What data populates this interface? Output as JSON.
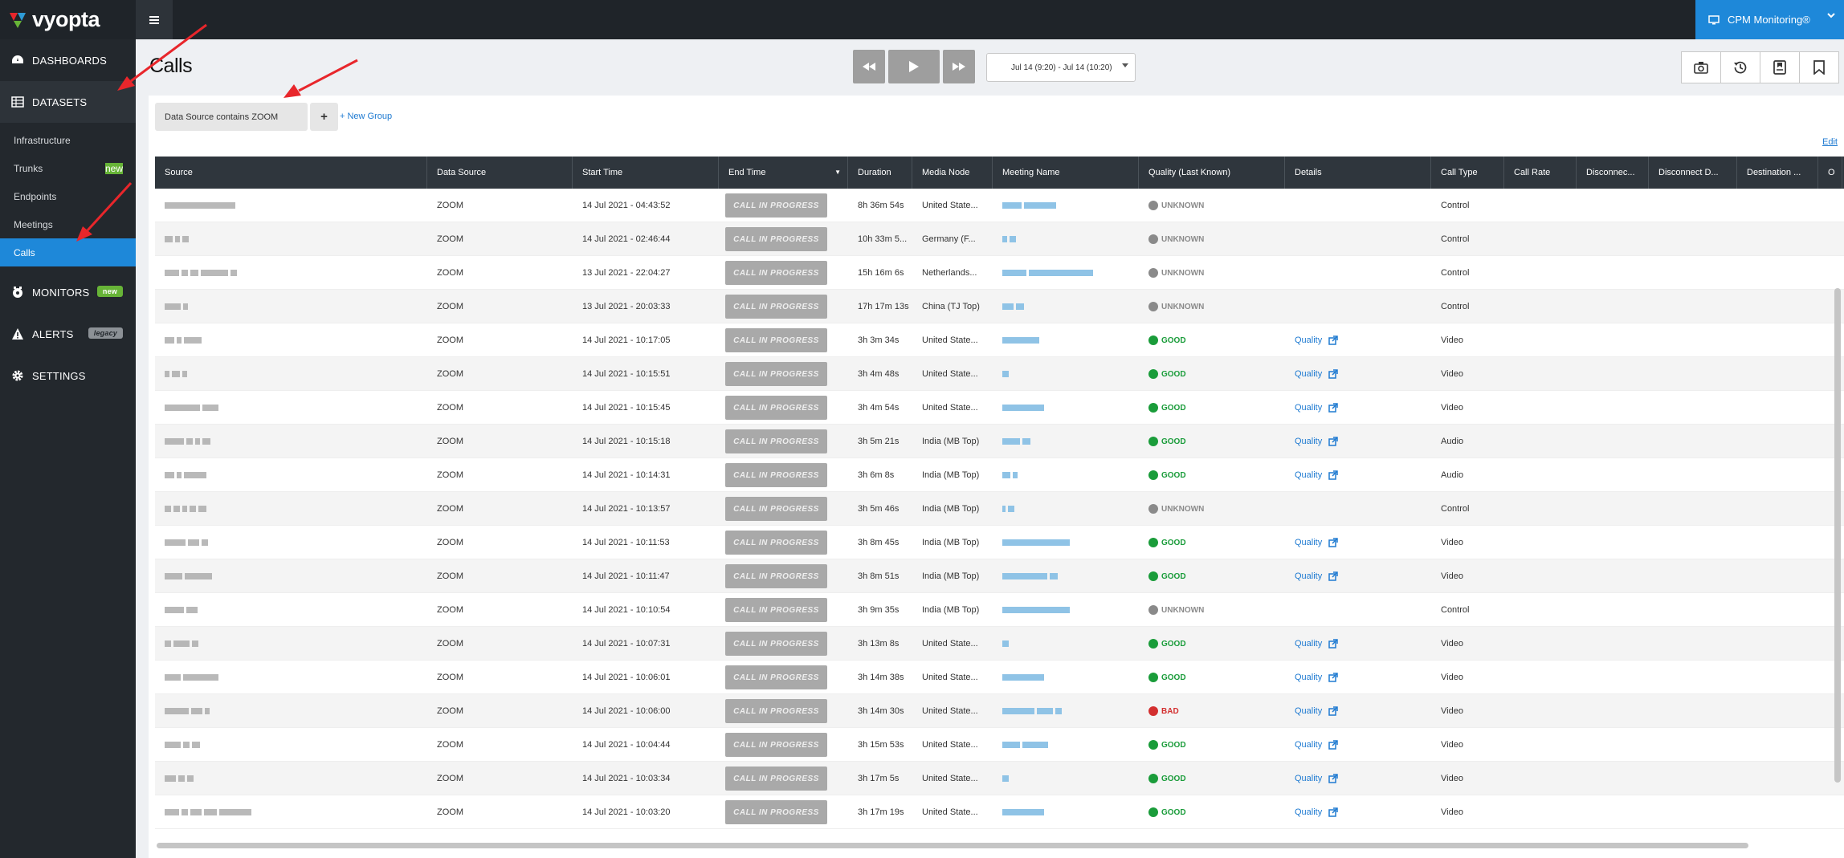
{
  "brand": {
    "name": "vyopta"
  },
  "topbar": {
    "product": "CPM Monitoring®"
  },
  "sidebar": {
    "items": [
      {
        "label": "DASHBOARDS",
        "icon": "dashboard-icon"
      },
      {
        "label": "DATASETS",
        "icon": "datasets-icon"
      },
      {
        "label": "MONITORS",
        "icon": "monitors-icon",
        "badge": "new"
      },
      {
        "label": "ALERTS",
        "icon": "alert-icon",
        "badge": "legacy"
      },
      {
        "label": "SETTINGS",
        "icon": "gear-icon"
      }
    ],
    "subitems": [
      {
        "label": "Infrastructure"
      },
      {
        "label": "Trunks",
        "badge": "new"
      },
      {
        "label": "Endpoints"
      },
      {
        "label": "Meetings"
      },
      {
        "label": "Calls",
        "selected": true
      }
    ]
  },
  "page": {
    "title": "Calls"
  },
  "player": {
    "date_range": "Jul 14 (9:20) - Jul 14 (10:20)"
  },
  "filters": {
    "chip": "Data Source contains ZOOM",
    "plus": "+",
    "new_group": "+ New Group",
    "edit": "Edit"
  },
  "table": {
    "columns": [
      "Source",
      "Data Source",
      "Start Time",
      "End Time",
      "Duration",
      "Media Node",
      "Meeting Name",
      "Quality (Last Known)",
      "Details",
      "Call Type",
      "Call Rate",
      "Disconnec...",
      "Disconnect D...",
      "Destination ...",
      "O"
    ],
    "in_progress_label": "CALL IN PROGRESS",
    "details_label": "Quality",
    "rows": [
      {
        "data_source": "ZOOM",
        "start": "14 Jul 2021 - 04:43:52",
        "duration": "8h 36m 54s",
        "node": "United State...",
        "quality": "UNKNOWN",
        "details": false,
        "call_type": "Control"
      },
      {
        "data_source": "ZOOM",
        "start": "14 Jul 2021 - 02:46:44",
        "duration": "10h 33m 5...",
        "node": "Germany (F...",
        "quality": "UNKNOWN",
        "details": false,
        "call_type": "Control"
      },
      {
        "data_source": "ZOOM",
        "start": "13 Jul 2021 - 22:04:27",
        "duration": "15h 16m 6s",
        "node": "Netherlands...",
        "quality": "UNKNOWN",
        "details": false,
        "call_type": "Control"
      },
      {
        "data_source": "ZOOM",
        "start": "13 Jul 2021 - 20:03:33",
        "duration": "17h 17m 13s",
        "node": "China (TJ Top)",
        "quality": "UNKNOWN",
        "details": false,
        "call_type": "Control"
      },
      {
        "data_source": "ZOOM",
        "start": "14 Jul 2021 - 10:17:05",
        "duration": "3h 3m 34s",
        "node": "United State...",
        "quality": "GOOD",
        "details": true,
        "call_type": "Video"
      },
      {
        "data_source": "ZOOM",
        "start": "14 Jul 2021 - 10:15:51",
        "duration": "3h 4m 48s",
        "node": "United State...",
        "quality": "GOOD",
        "details": true,
        "call_type": "Video"
      },
      {
        "data_source": "ZOOM",
        "start": "14 Jul 2021 - 10:15:45",
        "duration": "3h 4m 54s",
        "node": "United State...",
        "quality": "GOOD",
        "details": true,
        "call_type": "Video"
      },
      {
        "data_source": "ZOOM",
        "start": "14 Jul 2021 - 10:15:18",
        "duration": "3h 5m 21s",
        "node": "India (MB Top)",
        "quality": "GOOD",
        "details": true,
        "call_type": "Audio"
      },
      {
        "data_source": "ZOOM",
        "start": "14 Jul 2021 - 10:14:31",
        "duration": "3h 6m 8s",
        "node": "India (MB Top)",
        "quality": "GOOD",
        "details": true,
        "call_type": "Audio"
      },
      {
        "data_source": "ZOOM",
        "start": "14 Jul 2021 - 10:13:57",
        "duration": "3h 5m 46s",
        "node": "India (MB Top)",
        "quality": "UNKNOWN",
        "details": false,
        "call_type": "Control"
      },
      {
        "data_source": "ZOOM",
        "start": "14 Jul 2021 - 10:11:53",
        "duration": "3h 8m 45s",
        "node": "India (MB Top)",
        "quality": "GOOD",
        "details": true,
        "call_type": "Video"
      },
      {
        "data_source": "ZOOM",
        "start": "14 Jul 2021 - 10:11:47",
        "duration": "3h 8m 51s",
        "node": "India (MB Top)",
        "quality": "GOOD",
        "details": true,
        "call_type": "Video"
      },
      {
        "data_source": "ZOOM",
        "start": "14 Jul 2021 - 10:10:54",
        "duration": "3h 9m 35s",
        "node": "India (MB Top)",
        "quality": "UNKNOWN",
        "details": false,
        "call_type": "Control"
      },
      {
        "data_source": "ZOOM",
        "start": "14 Jul 2021 - 10:07:31",
        "duration": "3h 13m 8s",
        "node": "United State...",
        "quality": "GOOD",
        "details": true,
        "call_type": "Video"
      },
      {
        "data_source": "ZOOM",
        "start": "14 Jul 2021 - 10:06:01",
        "duration": "3h 14m 38s",
        "node": "United State...",
        "quality": "GOOD",
        "details": true,
        "call_type": "Video"
      },
      {
        "data_source": "ZOOM",
        "start": "14 Jul 2021 - 10:06:00",
        "duration": "3h 14m 30s",
        "node": "United State...",
        "quality": "BAD",
        "details": true,
        "call_type": "Video"
      },
      {
        "data_source": "ZOOM",
        "start": "14 Jul 2021 - 10:04:44",
        "duration": "3h 15m 53s",
        "node": "United State...",
        "quality": "GOOD",
        "details": true,
        "call_type": "Video"
      },
      {
        "data_source": "ZOOM",
        "start": "14 Jul 2021 - 10:03:34",
        "duration": "3h 17m 5s",
        "node": "United State...",
        "quality": "GOOD",
        "details": true,
        "call_type": "Video"
      },
      {
        "data_source": "ZOOM",
        "start": "14 Jul 2021 - 10:03:20",
        "duration": "3h 17m 19s",
        "node": "United State...",
        "quality": "GOOD",
        "details": true,
        "call_type": "Video"
      }
    ]
  },
  "colors": {
    "accent": "#1e88d9",
    "good": "#1a9c3a",
    "bad": "#d32f2f",
    "unknown": "#8a8a8a",
    "annotation_arrow": "#e8262b"
  }
}
